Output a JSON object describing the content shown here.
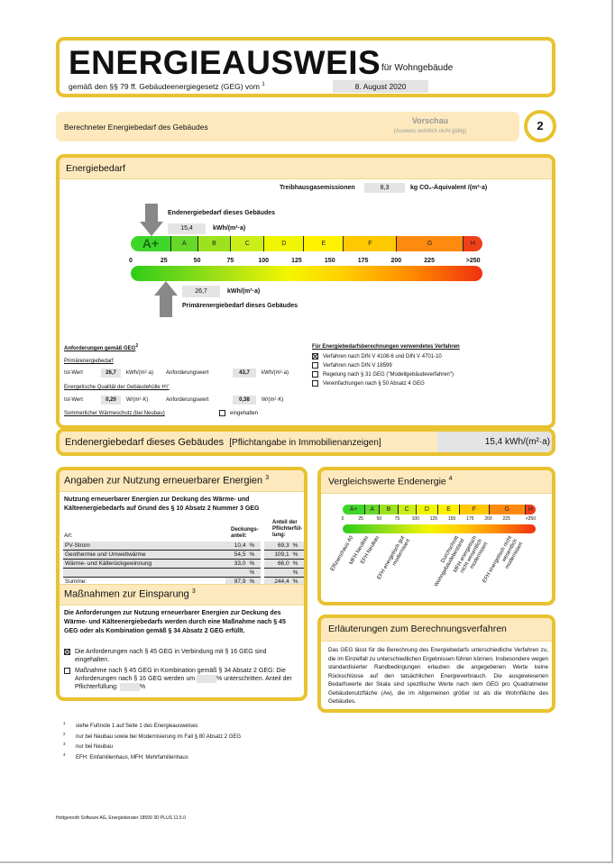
{
  "header": {
    "title": "ENERGIEAUSWEIS",
    "subtitle": "für Wohngebäude",
    "law": "gemäß den §§ 79 ff. Gebäudeenergiegesetz (GEG) vom",
    "law_footnote": "1",
    "date": "8. August 2020"
  },
  "section": {
    "label": "Berechneter Energiebedarf des Gebäudes",
    "preview": "Vorschau",
    "preview_note": "(Ausweis rechtlich nicht gültig)",
    "page_number": "2"
  },
  "energiebedarf": {
    "title": "Energiebedarf",
    "ghg_label": "Treibhausgasemissionen",
    "ghg_value": "8,3",
    "ghg_unit": "kg CO₂-Äquivalent /(m²·a)",
    "end_label": "Endenergiebedarf dieses Gebäudes",
    "end_value": "15,4",
    "end_value_num": 15.4,
    "end_unit": "kWh/(m²·a)",
    "primary_label": "Primärenergiebedarf dieses Gebäudes",
    "primary_value": "26,7",
    "primary_value_num": 26.7,
    "primary_unit": "kWh/(m²·a)",
    "scale": {
      "max": 265,
      "classes": [
        {
          "label": "A+",
          "from": 0,
          "to": 30
        },
        {
          "label": "A",
          "from": 30,
          "to": 50
        },
        {
          "label": "B",
          "from": 50,
          "to": 75
        },
        {
          "label": "C",
          "from": 75,
          "to": 100
        },
        {
          "label": "D",
          "from": 100,
          "to": 130
        },
        {
          "label": "E",
          "from": 130,
          "to": 160
        },
        {
          "label": "F",
          "from": 160,
          "to": 200
        },
        {
          "label": "G",
          "from": 200,
          "to": 250
        },
        {
          "label": "H",
          "from": 250,
          "to": 265
        }
      ],
      "ticks": [
        {
          "label": "0",
          "v": 0
        },
        {
          "label": "25",
          "v": 25
        },
        {
          "label": "50",
          "v": 50
        },
        {
          "label": "75",
          "v": 75
        },
        {
          "label": "100",
          "v": 100
        },
        {
          "label": "125",
          "v": 125
        },
        {
          "label": "150",
          "v": 150
        },
        {
          "label": "175",
          "v": 175
        },
        {
          "label": "200",
          "v": 200
        },
        {
          "label": "225",
          "v": 225
        },
        {
          "label": ">250",
          "v": 258
        }
      ]
    },
    "req": {
      "title": "Anforderungen gemäß GEG",
      "title_fn": "2",
      "primary_title": "Primärenergiebedarf",
      "ist": "Ist-Wert",
      "ist_value": "26,7",
      "unit_kwh": "kWh/(m²·a)",
      "anf": "Anforderungswert",
      "anf_value": "43,7",
      "hull_title": "Energetische Qualität der Gebäudehülle Hᴛ'",
      "ist_value2": "0,20",
      "unit_w": "W/(m²·K)",
      "anf_value2": "0,38",
      "summer": "Sommerlicher Wärmeschutz (bei Neubau)",
      "summer_cb": "eingehalten"
    },
    "methods": {
      "title": "Für Energiebedarfsberechnungen verwendetes Verfahren",
      "items": [
        {
          "label": "Verfahren nach DIN V 4108-6 und DIN V 4701-10",
          "checked": true
        },
        {
          "label": "Verfahren nach DIN V 18599",
          "checked": false
        },
        {
          "label": "Regelung nach § 31 GEG (\"Modellgebäudeverfahren\")",
          "checked": false
        },
        {
          "label": "Vereinfachungen nach § 50 Absatz 4 GEG",
          "checked": false
        }
      ]
    }
  },
  "end_line": {
    "label": "Endenergiebedarf dieses Gebäudes",
    "note": "[Pflichtangabe in Immobilienanzeigen]",
    "value": "15,4 kWh/(m²·a)"
  },
  "renewable": {
    "title": "Angaben zur Nutzung erneuerbarer Energien",
    "fn": "3",
    "intro": "Nutzung erneuerbarer Energien zur Deckung des Wärme- und Kälteenergiebedarfs auf Grund des § 10 Absatz 2 Nummer 3 GEG",
    "col_art": "Art:",
    "col_share": "Deckungs-anteil:",
    "col_fulfil": "Anteil der Pflichterfül-lung:",
    "pct": "%",
    "rows": [
      {
        "art": "PV-Strom",
        "share": "10,4",
        "fulfil": "69,3"
      },
      {
        "art": "Geothermie und Umweltwärme",
        "share": "54,5",
        "fulfil": "109,1"
      },
      {
        "art": "Wärme- und Kälterückgewinnung",
        "share": "33,0",
        "fulfil": "66,0"
      },
      {
        "art": "",
        "share": "",
        "fulfil": ""
      },
      {
        "art": "Summe:",
        "share": "97,9",
        "fulfil": "244,4"
      }
    ]
  },
  "measures": {
    "title": "Maßnahmen zur Einsparung",
    "fn": "3",
    "intro": "Die Anforderungen zur Nutzung erneuerbarer Energien zur Deckung des Wärme- und Kälteenergiebedarfs werden durch eine Maßnahme nach § 45 GEG oder als Kombination gemäß § 34 Absatz 2 GEG erfüllt.",
    "opt1": "Die Anforderungen nach § 45 GEG in Verbindung mit § 16 GEG sind eingehalten.",
    "opt1_checked": true,
    "opt2a": "Maßnahme nach § 45 GEG in Kombination gemäß § 34 Absatz 2 GEG: Die Anforderungen nach § 16 GEG werden um",
    "opt2b": "unterschritten. Anteil der Pflichterfüllung:",
    "opt2_checked": false,
    "pct": "%"
  },
  "comparison": {
    "title": "Vergleichswerte Endenergie",
    "fn": "4",
    "benchmarks": [
      {
        "label": "Effizienzhaus 40",
        "v": 10
      },
      {
        "label": "MFH Neubau",
        "v": 30
      },
      {
        "label": "EFH Neubau",
        "v": 45
      },
      {
        "label": "EFH energetisch gut modernisiert",
        "v": 80
      },
      {
        "label": "Durchschnitt Wohngebäudebestand",
        "v": 155
      },
      {
        "label": "MFH energetisch nicht wesentlich modernisiert",
        "v": 180
      },
      {
        "label": "EFH energetisch nicht wesentlich modernisiert",
        "v": 228
      }
    ]
  },
  "explanation": {
    "title": "Erläuterungen zum Berechnungsverfahren",
    "text": "Das GEG lässt für die Berechnung des Energiebedarfs unterschiedliche Verfahren zu, die im Einzelfall zu unterschiedlichen Ergebnissen führen können. Insbesondere wegen standardisierter Randbedingungen erlauben die angegebenen Werte keine Rückschlüsse auf den tatsächlichen Energieverbrauch. Die ausgewiesenen Bedarfswerte der Skala sind spezifische Werte nach dem GEG pro Quadratmeter Gebäudenutzfläche (Aɴ), die im Allgemeinen größer ist als die Wohnfläche des Gebäudes."
  },
  "footnotes": [
    {
      "n": "1",
      "t": "siehe Fußnote 1 auf Seite 1 des Energieausweises"
    },
    {
      "n": "2",
      "t": "nur bei Neubau sowie bei Modernisierung im Fall § 80 Absatz 2 GEG"
    },
    {
      "n": "3",
      "t": "nur bei Neubau"
    },
    {
      "n": "4",
      "t": "EFH: Einfamilienhaus, MFH: Mehrfamilienhaus"
    }
  ],
  "footer": "Hottgenroth Software AG, Energieberater 18599 3D PLUS 11.5.0",
  "colors": {
    "border": "#e8c230",
    "header_fill": "#fde9bd",
    "field": "#e4e4e4"
  }
}
